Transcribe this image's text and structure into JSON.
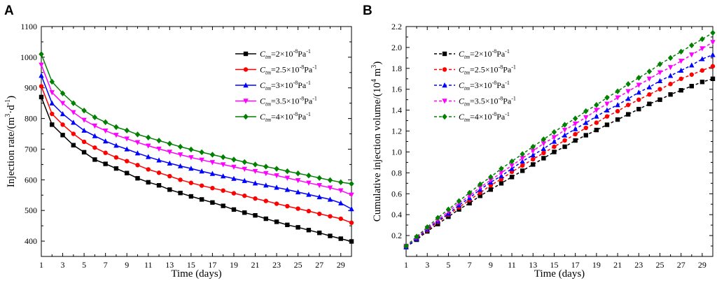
{
  "chart_data": [
    {
      "panel": "A",
      "type": "line",
      "xlabel": "Time (days)",
      "ylabel": {
        "base": "Injection rate/(m",
        "sup1": "3",
        "mid": "·d",
        "sup2": "-1",
        "end": ")"
      },
      "xlim": [
        1,
        30
      ],
      "ylim": [
        350,
        1100
      ],
      "xticks": [
        1,
        3,
        5,
        7,
        9,
        11,
        13,
        15,
        17,
        19,
        21,
        23,
        25,
        27,
        29
      ],
      "yticks": [
        400,
        500,
        600,
        700,
        800,
        900,
        1000,
        1100
      ],
      "legend_position": "top-right",
      "x": [
        1,
        2,
        3,
        4,
        5,
        6,
        7,
        8,
        9,
        10,
        11,
        12,
        13,
        14,
        15,
        16,
        17,
        18,
        19,
        20,
        21,
        22,
        23,
        24,
        25,
        26,
        27,
        28,
        29,
        30
      ],
      "series": [
        {
          "name": "Ctm=2×10-8Pa-1",
          "label": {
            "c": "C",
            "sub": "tm",
            "eq": "=2×10",
            "exp": "-8",
            "unit": "Pa",
            "unitexp": "-1"
          },
          "color": "#000000",
          "marker": "square",
          "values": [
            870,
            780,
            746,
            713,
            690,
            666,
            652,
            637,
            622,
            605,
            592,
            582,
            568,
            557,
            546,
            536,
            526,
            515,
            503,
            493,
            484,
            473,
            463,
            453,
            445,
            436,
            427,
            417,
            408,
            399
          ]
        },
        {
          "name": "Ctm=2.5×10-8Pa-1",
          "label": {
            "c": "C",
            "sub": "tm",
            "eq": "=2.5×10",
            "exp": "-8",
            "unit": "Pa",
            "unitexp": "-1"
          },
          "color": "#ff0000",
          "marker": "circle",
          "values": [
            905,
            815,
            780,
            750,
            724,
            705,
            688,
            673,
            661,
            648,
            634,
            623,
            612,
            600,
            590,
            581,
            573,
            565,
            556,
            548,
            539,
            531,
            522,
            514,
            506,
            498,
            489,
            481,
            473,
            460
          ]
        },
        {
          "name": "Ctm=3×10-8Pa-1",
          "label": {
            "c": "C",
            "sub": "tm",
            "eq": "=3×10",
            "exp": "-8",
            "unit": "Pa",
            "unitexp": "-1"
          },
          "color": "#0000ff",
          "marker": "triangle-up",
          "values": [
            940,
            850,
            815,
            787,
            761,
            743,
            726,
            712,
            700,
            687,
            675,
            664,
            654,
            645,
            637,
            628,
            620,
            612,
            604,
            597,
            589,
            582,
            575,
            568,
            560,
            552,
            544,
            536,
            524,
            505
          ]
        },
        {
          "name": "Ctm=3.5×10-8Pa-1",
          "label": {
            "c": "C",
            "sub": "tm",
            "eq": "=3.5×10",
            "exp": "-8",
            "unit": "Pa",
            "unitexp": "-1"
          },
          "color": "#ff00ff",
          "marker": "triangle-down",
          "values": [
            975,
            885,
            850,
            820,
            795,
            776,
            760,
            746,
            734,
            722,
            711,
            701,
            691,
            682,
            673,
            665,
            657,
            650,
            642,
            635,
            628,
            621,
            614,
            606,
            598,
            590,
            582,
            574,
            565,
            551
          ]
        },
        {
          "name": "Ctm=4×10-8Pa-1",
          "label": {
            "c": "C",
            "sub": "tm",
            "eq": "=4×10",
            "exp": "-8",
            "unit": "Pa",
            "unitexp": "-1"
          },
          "color": "#008000",
          "marker": "diamond",
          "values": [
            1010,
            920,
            882,
            850,
            826,
            804,
            788,
            772,
            761,
            748,
            738,
            728,
            718,
            708,
            699,
            690,
            682,
            674,
            666,
            658,
            650,
            643,
            636,
            628,
            621,
            614,
            606,
            599,
            592,
            587
          ]
        }
      ]
    },
    {
      "panel": "B",
      "type": "line",
      "xlabel": "Time (days)",
      "ylabel": {
        "base": "Cumulative injection volume/(10",
        "sup1": "4",
        "mid": " m",
        "sup2": "3",
        "end": ")"
      },
      "xlim": [
        1,
        30
      ],
      "ylim": [
        0,
        2.2
      ],
      "xticks": [
        1,
        3,
        5,
        7,
        9,
        11,
        13,
        15,
        17,
        19,
        21,
        23,
        25,
        27,
        29
      ],
      "yticks": [
        0.2,
        0.4,
        0.6,
        0.8,
        1.0,
        1.2,
        1.4,
        1.6,
        1.8,
        2.0,
        2.2
      ],
      "legend_position": "top-left",
      "x": [
        1,
        2,
        3,
        4,
        5,
        6,
        7,
        8,
        9,
        10,
        11,
        12,
        13,
        14,
        15,
        16,
        17,
        18,
        19,
        20,
        21,
        22,
        23,
        24,
        25,
        26,
        27,
        28,
        29,
        30
      ],
      "series": [
        {
          "name": "Ctm=2×10-8Pa-1",
          "label": {
            "c": "C",
            "sub": "tm",
            "eq": "=2×10",
            "exp": "-8",
            "unit": "Pa",
            "unitexp": "-1"
          },
          "color": "#000000",
          "marker": "square",
          "values": [
            0.09,
            0.16,
            0.24,
            0.31,
            0.38,
            0.45,
            0.51,
            0.58,
            0.64,
            0.7,
            0.76,
            0.82,
            0.88,
            0.94,
            1.0,
            1.05,
            1.11,
            1.16,
            1.21,
            1.26,
            1.31,
            1.36,
            1.41,
            1.46,
            1.5,
            1.55,
            1.59,
            1.63,
            1.67,
            1.7
          ]
        },
        {
          "name": "Ctm=2.5×10-8Pa-1",
          "label": {
            "c": "C",
            "sub": "tm",
            "eq": "=2.5×10",
            "exp": "-8",
            "unit": "Pa",
            "unitexp": "-1"
          },
          "color": "#ff0000",
          "marker": "circle",
          "values": [
            0.09,
            0.17,
            0.25,
            0.33,
            0.4,
            0.47,
            0.54,
            0.61,
            0.68,
            0.74,
            0.81,
            0.87,
            0.93,
            0.99,
            1.05,
            1.11,
            1.17,
            1.23,
            1.28,
            1.34,
            1.39,
            1.45,
            1.5,
            1.55,
            1.6,
            1.65,
            1.7,
            1.74,
            1.78,
            1.82
          ]
        },
        {
          "name": "Ctm=3×10-8Pa-1",
          "label": {
            "c": "C",
            "sub": "tm",
            "eq": "=3×10",
            "exp": "-8",
            "unit": "Pa",
            "unitexp": "-1"
          },
          "color": "#0000ff",
          "marker": "triangle-up",
          "values": [
            0.09,
            0.17,
            0.26,
            0.34,
            0.41,
            0.49,
            0.56,
            0.64,
            0.71,
            0.77,
            0.84,
            0.91,
            0.97,
            1.03,
            1.1,
            1.16,
            1.22,
            1.28,
            1.34,
            1.4,
            1.45,
            1.51,
            1.57,
            1.62,
            1.68,
            1.73,
            1.78,
            1.83,
            1.89,
            1.93
          ]
        },
        {
          "name": "Ctm=3.5×10-8Pa-1",
          "label": {
            "c": "C",
            "sub": "tm",
            "eq": "=3.5×10",
            "exp": "-8",
            "unit": "Pa",
            "unitexp": "-1"
          },
          "color": "#ff00ff",
          "marker": "triangle-down",
          "values": [
            0.1,
            0.18,
            0.27,
            0.35,
            0.43,
            0.51,
            0.58,
            0.66,
            0.73,
            0.8,
            0.87,
            0.94,
            1.01,
            1.08,
            1.14,
            1.21,
            1.27,
            1.33,
            1.4,
            1.46,
            1.52,
            1.58,
            1.64,
            1.7,
            1.76,
            1.81,
            1.87,
            1.93,
            1.99,
            2.05
          ]
        },
        {
          "name": "Ctm=4×10-8Pa-1",
          "label": {
            "c": "C",
            "sub": "tm",
            "eq": "=4×10",
            "exp": "-8",
            "unit": "Pa",
            "unitexp": "-1"
          },
          "color": "#008000",
          "marker": "diamond",
          "values": [
            0.1,
            0.19,
            0.28,
            0.37,
            0.45,
            0.53,
            0.61,
            0.69,
            0.76,
            0.84,
            0.91,
            0.98,
            1.05,
            1.12,
            1.19,
            1.26,
            1.32,
            1.39,
            1.45,
            1.52,
            1.58,
            1.65,
            1.71,
            1.77,
            1.84,
            1.9,
            1.96,
            2.02,
            2.08,
            2.14
          ]
        }
      ]
    }
  ]
}
